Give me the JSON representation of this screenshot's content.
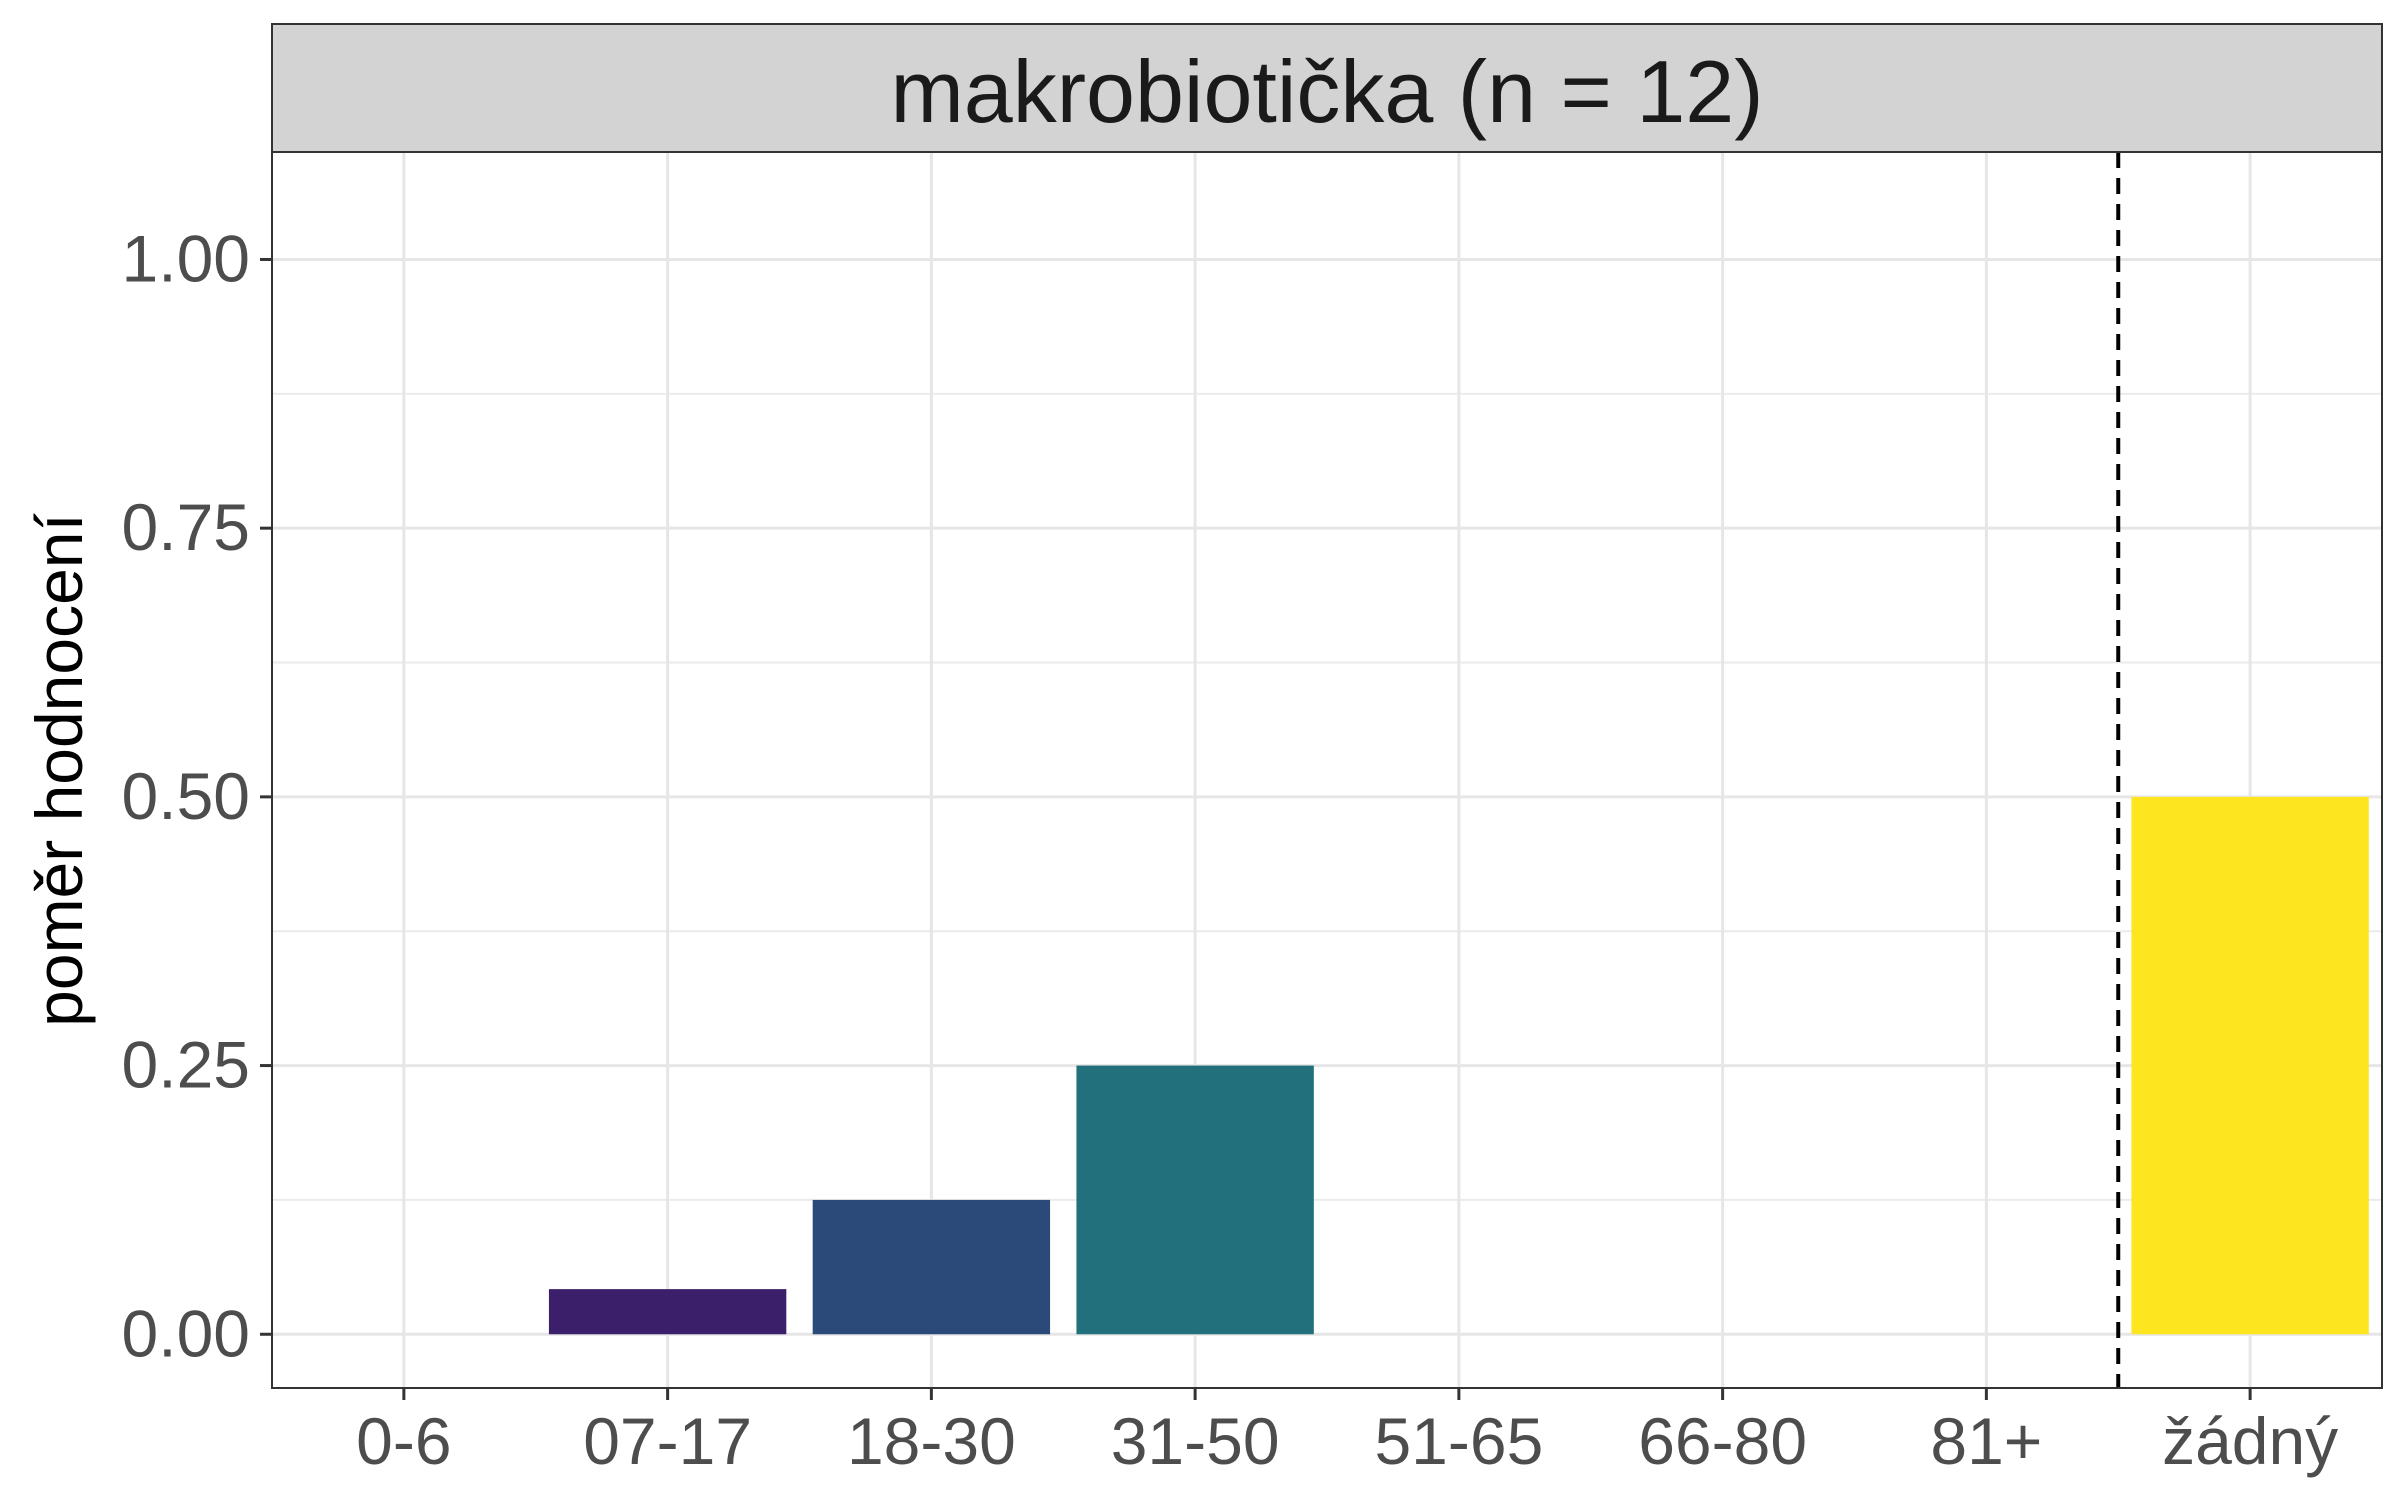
{
  "chart_data": {
    "type": "bar",
    "title": "makrobiotička (n = 12)",
    "xlabel": "",
    "ylabel": "poměr hodnocení",
    "categories": [
      "0-6",
      "07-17",
      "18-30",
      "31-50",
      "51-65",
      "66-80",
      "81+",
      "žádný"
    ],
    "values": [
      0,
      0.042,
      0.125,
      0.25,
      0,
      0,
      0,
      0.5
    ],
    "colors": [
      "#440154",
      "#3b1f6b",
      "#2b4a7a",
      "#21707b",
      "#2ea37a",
      "#5fc562",
      "#a8d83a",
      "#fde61f"
    ],
    "ylim": [
      -0.05,
      1.1
    ],
    "yticks": [
      "0.00",
      "0.25",
      "0.50",
      "0.75",
      "1.00"
    ],
    "ytick_values": [
      0,
      0.25,
      0.5,
      0.75,
      1.0
    ],
    "grid": true,
    "reference_line": {
      "style": "dashed",
      "between": [
        "81+",
        "žádný"
      ]
    },
    "legend": "none"
  }
}
